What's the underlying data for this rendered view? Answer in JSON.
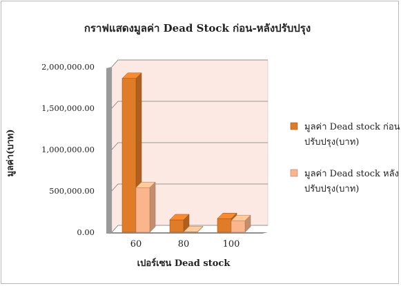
{
  "chart_data": {
    "type": "bar",
    "title": "กราฟแสดงมูลค่า Dead Stock ก่อน-หลังปรับปรุง",
    "xlabel": "เปอร์เซน Dead stock",
    "ylabel": "มูลค่า(บาท)",
    "categories": [
      "60",
      "80",
      "100"
    ],
    "series": [
      {
        "name": "มูลค่า Dead stock ก่อนปรับปรุง(บาท)",
        "legend_lines": [
          "มูลค่า Dead stock ก่อน",
          "ปรับปรุง(บาท)"
        ],
        "color": "#e07b27",
        "values": [
          1860000,
          150000,
          165000
        ]
      },
      {
        "name": "มูลค่า Dead stock หลังปรับปรุง(บาท)",
        "legend_lines": [
          "มูลค่า Dead stock หลัง",
          "ปรับปรุง(บาท)"
        ],
        "color": "#fbb58c",
        "values": [
          540000,
          5000,
          140000
        ]
      }
    ],
    "ylim": [
      0,
      2000000
    ],
    "yticks": [
      0,
      500000,
      1000000,
      1500000,
      2000000
    ],
    "ytick_labels": [
      "0.00",
      "500,000.00",
      "1,000,000.00",
      "1,500,000.00",
      "2,000,000.00"
    ],
    "grid": true,
    "legend_position": "right",
    "plot_background": "#fce9e3",
    "style": "3d-column"
  }
}
